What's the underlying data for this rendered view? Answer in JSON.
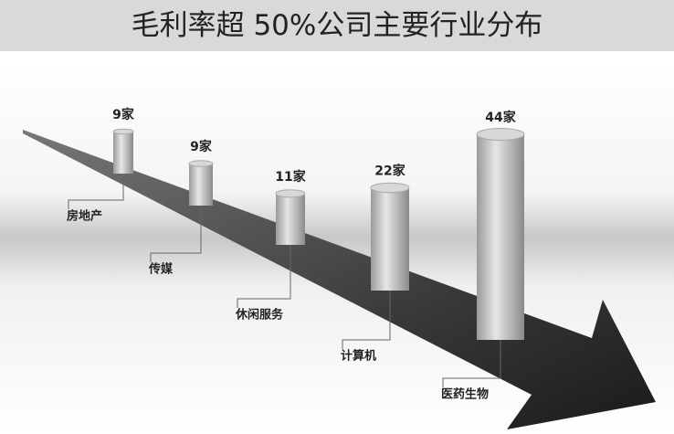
{
  "chart_data": {
    "type": "bar",
    "title": "毛利率超 50%公司主要行业分布",
    "categories": [
      "房地产",
      "传媒",
      "休闲服务",
      "计算机",
      "医药生物"
    ],
    "values": [
      9,
      9,
      11,
      22,
      44
    ],
    "value_labels": [
      "9家",
      "9家",
      "11家",
      "22家",
      "44家"
    ]
  }
}
